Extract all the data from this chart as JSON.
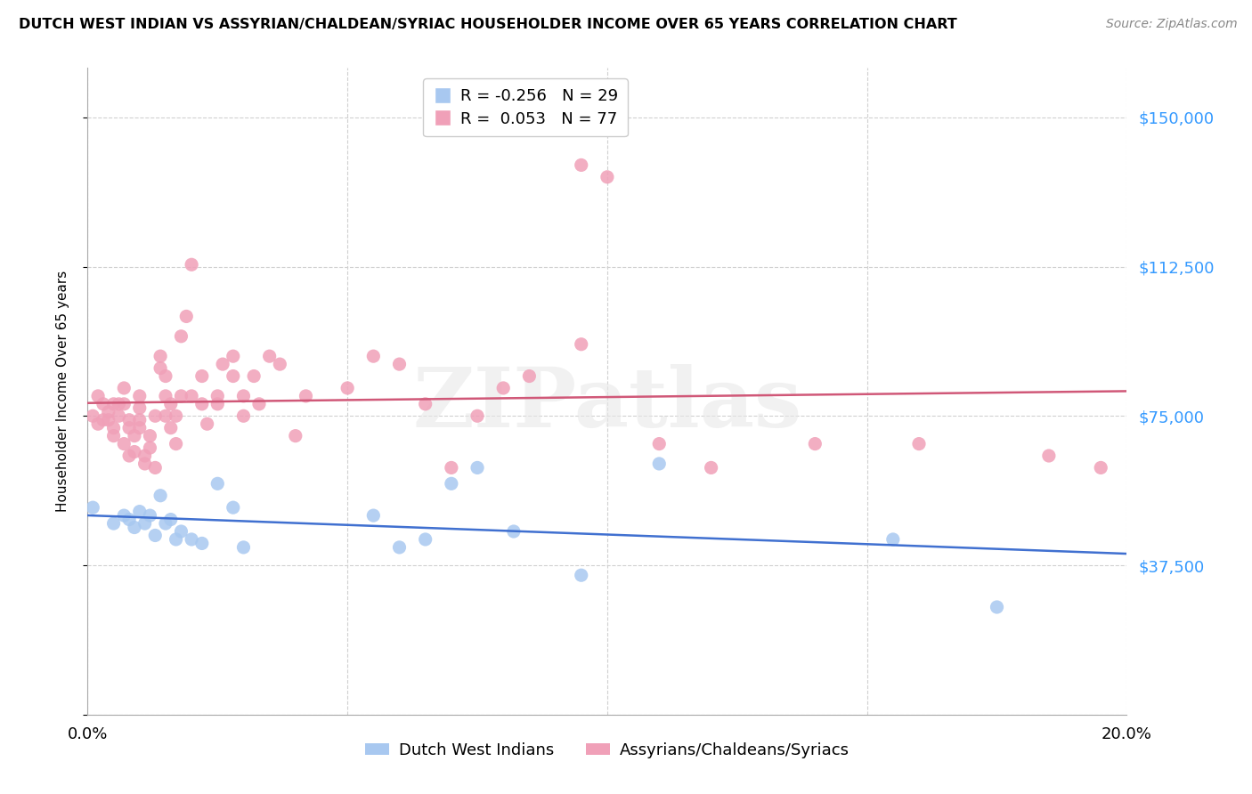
{
  "title": "DUTCH WEST INDIAN VS ASSYRIAN/CHALDEAN/SYRIAC HOUSEHOLDER INCOME OVER 65 YEARS CORRELATION CHART",
  "source": "Source: ZipAtlas.com",
  "ylabel": "Householder Income Over 65 years",
  "xlim": [
    0.0,
    0.2
  ],
  "ylim": [
    0,
    162500
  ],
  "yticks": [
    0,
    37500,
    75000,
    112500,
    150000
  ],
  "ytick_labels_right": [
    "",
    "$37,500",
    "$75,000",
    "$112,500",
    "$150,000"
  ],
  "xticks": [
    0.0,
    0.05,
    0.1,
    0.15,
    0.2
  ],
  "xtick_labels": [
    "0.0%",
    "",
    "",
    "",
    "20.0%"
  ],
  "blue_R": -0.256,
  "blue_N": 29,
  "pink_R": 0.053,
  "pink_N": 77,
  "blue_color": "#a8c8f0",
  "pink_color": "#f0a0b8",
  "blue_line_color": "#4070d0",
  "pink_line_color": "#d05878",
  "watermark_text": "ZIPatlas",
  "legend_label_blue": "Dutch West Indians",
  "legend_label_pink": "Assyrians/Chaldeans/Syriacs",
  "blue_scatter_x": [
    0.001,
    0.005,
    0.007,
    0.008,
    0.009,
    0.01,
    0.011,
    0.012,
    0.013,
    0.014,
    0.015,
    0.016,
    0.017,
    0.018,
    0.02,
    0.022,
    0.025,
    0.028,
    0.03,
    0.055,
    0.06,
    0.065,
    0.07,
    0.075,
    0.082,
    0.095,
    0.11,
    0.155,
    0.175
  ],
  "blue_scatter_y": [
    52000,
    48000,
    50000,
    49000,
    47000,
    51000,
    48000,
    50000,
    45000,
    55000,
    48000,
    49000,
    44000,
    46000,
    44000,
    43000,
    58000,
    52000,
    42000,
    50000,
    42000,
    44000,
    58000,
    62000,
    46000,
    35000,
    63000,
    44000,
    27000
  ],
  "pink_scatter_x": [
    0.001,
    0.002,
    0.002,
    0.003,
    0.003,
    0.004,
    0.004,
    0.005,
    0.005,
    0.005,
    0.006,
    0.006,
    0.007,
    0.007,
    0.007,
    0.008,
    0.008,
    0.008,
    0.009,
    0.009,
    0.01,
    0.01,
    0.01,
    0.01,
    0.011,
    0.011,
    0.012,
    0.012,
    0.013,
    0.013,
    0.014,
    0.014,
    0.015,
    0.015,
    0.015,
    0.016,
    0.016,
    0.017,
    0.017,
    0.018,
    0.018,
    0.019,
    0.02,
    0.02,
    0.022,
    0.022,
    0.023,
    0.025,
    0.025,
    0.026,
    0.028,
    0.028,
    0.03,
    0.03,
    0.032,
    0.033,
    0.035,
    0.037,
    0.04,
    0.042,
    0.05,
    0.055,
    0.06,
    0.065,
    0.07,
    0.075,
    0.08,
    0.085,
    0.095,
    0.095,
    0.1,
    0.11,
    0.12,
    0.14,
    0.16,
    0.185,
    0.195
  ],
  "pink_scatter_y": [
    75000,
    73000,
    80000,
    74000,
    78000,
    74000,
    76000,
    70000,
    72000,
    78000,
    75000,
    78000,
    82000,
    68000,
    78000,
    65000,
    72000,
    74000,
    70000,
    66000,
    74000,
    72000,
    77000,
    80000,
    65000,
    63000,
    67000,
    70000,
    75000,
    62000,
    90000,
    87000,
    80000,
    75000,
    85000,
    78000,
    72000,
    75000,
    68000,
    80000,
    95000,
    100000,
    113000,
    80000,
    85000,
    78000,
    73000,
    78000,
    80000,
    88000,
    90000,
    85000,
    80000,
    75000,
    85000,
    78000,
    90000,
    88000,
    70000,
    80000,
    82000,
    90000,
    88000,
    78000,
    62000,
    75000,
    82000,
    85000,
    138000,
    93000,
    135000,
    68000,
    62000,
    68000,
    68000,
    65000,
    62000
  ]
}
